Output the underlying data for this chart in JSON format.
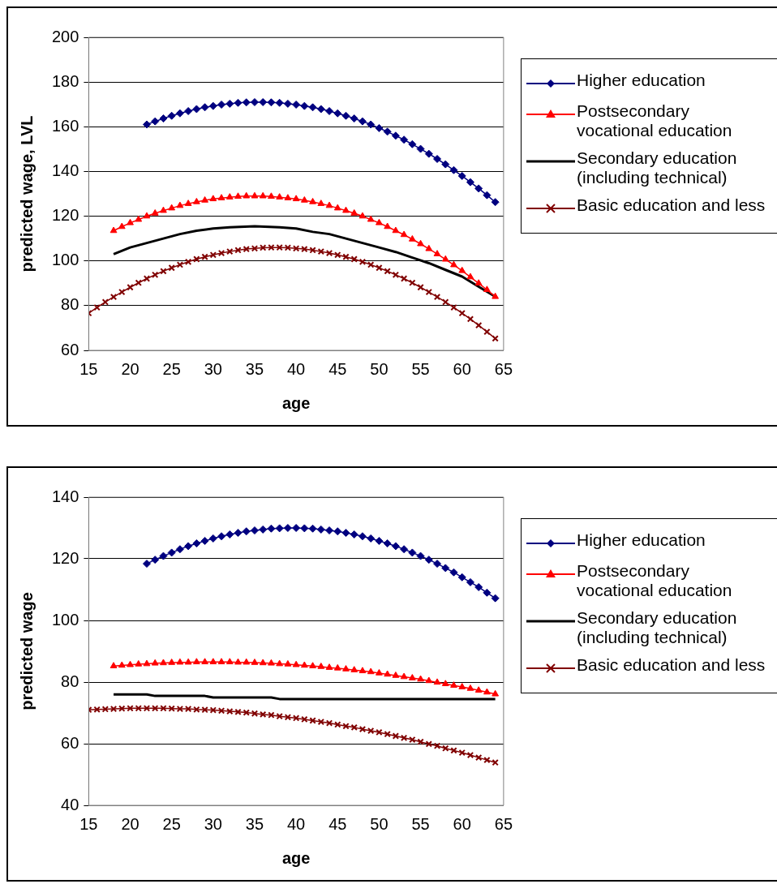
{
  "chart_data": [
    {
      "type": "line",
      "xlabel": "age",
      "ylabel": "predicted wage, LVL",
      "xlim": [
        15,
        65
      ],
      "xticks": [
        15,
        20,
        25,
        30,
        35,
        40,
        45,
        50,
        55,
        60,
        65
      ],
      "ylim": [
        60,
        200
      ],
      "yticks": [
        60,
        80,
        100,
        120,
        140,
        160,
        180,
        200
      ],
      "grid": "y",
      "legend": "right",
      "series": [
        {
          "name": "Higher education",
          "color": "#000080",
          "marker": "diamond",
          "x": [
            22,
            23,
            24,
            25,
            26,
            27,
            28,
            29,
            30,
            31,
            32,
            33,
            34,
            35,
            36,
            37,
            38,
            39,
            40,
            41,
            42,
            43,
            44,
            45,
            46,
            47,
            48,
            49,
            50,
            51,
            52,
            53,
            54,
            55,
            56,
            57,
            58,
            59,
            60,
            61,
            62,
            63,
            64
          ],
          "values": [
            161,
            162.4,
            163.7,
            164.9,
            166,
            167,
            167.9,
            168.7,
            169.3,
            169.9,
            170.3,
            170.7,
            170.9,
            171,
            171,
            170.9,
            170.7,
            170.3,
            169.9,
            169.3,
            168.7,
            167.9,
            167,
            166,
            164.9,
            163.7,
            162.4,
            161,
            159.4,
            157.8,
            156,
            154.2,
            152.2,
            150.1,
            147.9,
            145.6,
            143.2,
            140.6,
            138,
            135.2,
            132.4,
            129.4,
            126.3
          ]
        },
        {
          "name": "Postsecondary vocational education",
          "color": "#ff0000",
          "marker": "triangle",
          "x": [
            18,
            19,
            20,
            21,
            22,
            23,
            24,
            25,
            26,
            27,
            28,
            29,
            30,
            31,
            32,
            33,
            34,
            35,
            36,
            37,
            38,
            39,
            40,
            41,
            42,
            43,
            44,
            45,
            46,
            47,
            48,
            49,
            50,
            51,
            52,
            53,
            54,
            55,
            56,
            57,
            58,
            59,
            60,
            61,
            62,
            63,
            64
          ],
          "values": [
            113.5,
            115.3,
            117,
            118.5,
            120,
            121.3,
            122.5,
            123.6,
            124.7,
            125.6,
            126.4,
            127.1,
            127.7,
            128.1,
            128.5,
            128.8,
            129,
            129,
            129,
            128.8,
            128.5,
            128.1,
            127.7,
            127.1,
            126.4,
            125.6,
            124.7,
            123.6,
            122.5,
            121.3,
            120,
            118.5,
            117,
            115.3,
            113.5,
            111.7,
            109.7,
            107.6,
            105.4,
            103.1,
            100.7,
            98.2,
            95.6,
            92.8,
            90,
            87.1,
            84
          ]
        },
        {
          "name": "Secondary education (including technical)",
          "color": "#000000",
          "marker": "none",
          "x": [
            18,
            20,
            22,
            24,
            26,
            28,
            30,
            32,
            35,
            38,
            40,
            42,
            44,
            46,
            48,
            50,
            52,
            54,
            56,
            58,
            60,
            62,
            64
          ],
          "values": [
            103,
            106,
            108,
            110,
            112,
            113.5,
            114.5,
            115,
            115.5,
            115,
            114.5,
            113,
            112,
            110,
            108,
            106,
            104,
            101.5,
            99,
            96,
            93,
            88.5,
            84
          ]
        },
        {
          "name": "Basic education and less",
          "color": "#800000",
          "marker": "cross",
          "x": [
            15,
            16,
            17,
            18,
            19,
            20,
            21,
            22,
            23,
            24,
            25,
            26,
            27,
            28,
            29,
            30,
            31,
            32,
            33,
            34,
            35,
            36,
            37,
            38,
            39,
            40,
            41,
            42,
            43,
            44,
            45,
            46,
            47,
            48,
            49,
            50,
            51,
            52,
            53,
            54,
            55,
            56,
            57,
            58,
            59,
            60,
            61,
            62,
            63,
            64
          ],
          "values": [
            76.6,
            79.2,
            81.6,
            83.9,
            86.1,
            88.2,
            90.2,
            92.1,
            93.8,
            95.4,
            96.9,
            98.3,
            99.6,
            100.8,
            101.8,
            102.7,
            103.5,
            104.2,
            104.8,
            105.3,
            105.6,
            105.9,
            106,
            106,
            105.9,
            105.6,
            105.3,
            104.8,
            104.2,
            103.5,
            102.7,
            101.8,
            100.8,
            99.6,
            98.3,
            96.9,
            95.4,
            93.8,
            92.1,
            90.2,
            88.2,
            86.1,
            83.9,
            81.6,
            79.2,
            76.6,
            74,
            71.2,
            68.3,
            65.3
          ]
        }
      ]
    },
    {
      "type": "line",
      "xlabel": "age",
      "ylabel": "predicted wage",
      "xlim": [
        15,
        65
      ],
      "xticks": [
        15,
        20,
        25,
        30,
        35,
        40,
        45,
        50,
        55,
        60,
        65
      ],
      "ylim": [
        40,
        140
      ],
      "yticks": [
        40,
        60,
        80,
        100,
        120,
        140
      ],
      "grid": "y",
      "legend": "right",
      "series": [
        {
          "name": "Higher education",
          "color": "#000080",
          "marker": "diamond",
          "x": [
            22,
            23,
            24,
            25,
            26,
            27,
            28,
            29,
            30,
            31,
            32,
            33,
            34,
            35,
            36,
            37,
            38,
            39,
            40,
            41,
            42,
            43,
            44,
            45,
            46,
            47,
            48,
            49,
            50,
            51,
            52,
            53,
            54,
            55,
            56,
            57,
            58,
            59,
            60,
            61,
            62,
            63,
            64
          ],
          "values": [
            118.4,
            119.7,
            120.9,
            122,
            123.1,
            124.1,
            125,
            125.8,
            126.6,
            127.3,
            127.9,
            128.4,
            128.9,
            129.2,
            129.5,
            129.8,
            129.9,
            130,
            130,
            129.9,
            129.8,
            129.5,
            129.2,
            128.9,
            128.4,
            127.9,
            127.3,
            126.6,
            125.8,
            125,
            124.1,
            123.1,
            122,
            120.9,
            119.7,
            118.4,
            117,
            115.6,
            114,
            112.4,
            110.8,
            109,
            107.2
          ]
        },
        {
          "name": "Postsecondary vocational education",
          "color": "#ff0000",
          "marker": "triangle",
          "x": [
            18,
            19,
            20,
            21,
            22,
            23,
            24,
            25,
            26,
            27,
            28,
            29,
            30,
            31,
            32,
            33,
            34,
            35,
            36,
            37,
            38,
            39,
            40,
            41,
            42,
            43,
            44,
            45,
            46,
            47,
            48,
            49,
            50,
            51,
            52,
            53,
            54,
            55,
            56,
            57,
            58,
            59,
            60,
            61,
            62,
            63,
            64
          ],
          "values": [
            85.2,
            85.4,
            85.6,
            85.8,
            85.9,
            86.1,
            86.2,
            86.3,
            86.4,
            86.4,
            86.5,
            86.5,
            86.5,
            86.5,
            86.5,
            86.4,
            86.4,
            86.3,
            86.2,
            86.1,
            85.9,
            85.8,
            85.6,
            85.4,
            85.2,
            85,
            84.7,
            84.5,
            84.2,
            83.9,
            83.6,
            83.3,
            82.9,
            82.5,
            82.1,
            81.7,
            81.3,
            80.9,
            80.4,
            79.9,
            79.4,
            78.9,
            78.4,
            77.9,
            77.3,
            76.7,
            76.1
          ]
        },
        {
          "name": "Secondary education (including technical)",
          "color": "#000000",
          "marker": "none",
          "x": [
            18,
            22,
            23,
            29,
            30,
            37,
            38,
            64
          ],
          "values": [
            76,
            76,
            75.5,
            75.5,
            75,
            75,
            74.5,
            74.5
          ]
        },
        {
          "name": "Basic education and less",
          "color": "#800000",
          "marker": "cross",
          "x": [
            15,
            16,
            17,
            18,
            19,
            20,
            21,
            22,
            23,
            24,
            25,
            26,
            27,
            28,
            29,
            30,
            31,
            32,
            33,
            34,
            35,
            36,
            37,
            38,
            39,
            40,
            41,
            42,
            43,
            44,
            45,
            46,
            47,
            48,
            49,
            50,
            51,
            52,
            53,
            54,
            55,
            56,
            57,
            58,
            59,
            60,
            61,
            62,
            63,
            64
          ],
          "values": [
            71,
            71.1,
            71.2,
            71.3,
            71.4,
            71.5,
            71.5,
            71.5,
            71.5,
            71.5,
            71.4,
            71.3,
            71.3,
            71.1,
            71,
            70.9,
            70.7,
            70.5,
            70.3,
            70.1,
            69.8,
            69.5,
            69.3,
            68.9,
            68.6,
            68.3,
            67.9,
            67.5,
            67.1,
            66.7,
            66.2,
            65.7,
            65.3,
            64.7,
            64.2,
            63.7,
            63.1,
            62.5,
            61.9,
            61.3,
            60.6,
            59.9,
            59.3,
            58.5,
            57.8,
            57.1,
            56.3,
            55.5,
            54.7,
            53.9
          ]
        }
      ]
    }
  ]
}
